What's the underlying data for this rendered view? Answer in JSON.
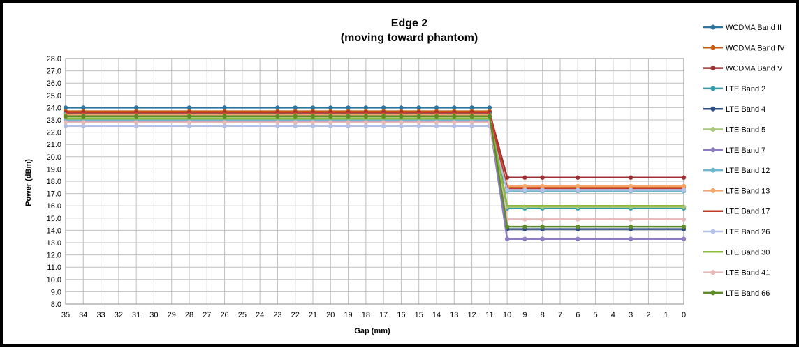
{
  "chart_data": {
    "type": "line",
    "title": "Edge 2",
    "subtitle": "(moving toward phantom)",
    "xlabel": "Gap (mm)",
    "ylabel": "Power (dBm)",
    "x": [
      35,
      34,
      33,
      32,
      31,
      30,
      29,
      28,
      27,
      26,
      25,
      24,
      23,
      22,
      21,
      20,
      19,
      18,
      17,
      16,
      15,
      14,
      13,
      12,
      11,
      10,
      9,
      8,
      7,
      6,
      5,
      4,
      3,
      2,
      1,
      0
    ],
    "x_reversed": true,
    "measured_x": [
      35,
      34,
      31,
      28,
      26,
      23,
      22,
      21,
      20,
      19,
      18,
      17,
      16,
      15,
      14,
      13,
      12,
      11,
      10,
      9,
      8,
      6,
      3,
      0
    ],
    "yticks": [
      "8.0",
      "9.0",
      "10.0",
      "11.0",
      "12.0",
      "13.0",
      "14.0",
      "15.0",
      "16.0",
      "17.0",
      "18.0",
      "19.0",
      "20.0",
      "21.0",
      "22.0",
      "23.0",
      "24.0",
      "25.0",
      "26.0",
      "27.0",
      "28.0"
    ],
    "ylim": [
      8,
      28
    ],
    "grid": true,
    "legend_position": "right",
    "series": [
      {
        "name": "WCDMA Band II",
        "color": "#2E75A0",
        "marker": "circle",
        "far": 24.0,
        "near": 15.9
      },
      {
        "name": "WCDMA Band IV",
        "color": "#C55A11",
        "marker": "circle",
        "far": 23.7,
        "near": 17.5
      },
      {
        "name": "WCDMA Band V",
        "color": "#9E3034",
        "marker": "circle",
        "far": 23.6,
        "near": 18.3
      },
      {
        "name": "LTE Band 2",
        "color": "#2E9CA6",
        "marker": "circle",
        "far": 23.5,
        "near": 15.8
      },
      {
        "name": "LTE Band 4",
        "color": "#2F4F87",
        "marker": "circle",
        "far": 23.3,
        "near": 14.1
      },
      {
        "name": "LTE Band 5",
        "color": "#A9C77B",
        "marker": "circle",
        "far": 23.2,
        "near": 15.9
      },
      {
        "name": "LTE Band 7",
        "color": "#8E7CC3",
        "marker": "circle",
        "far": 22.9,
        "near": 13.3
      },
      {
        "name": "LTE Band 12",
        "color": "#6FB6CF",
        "marker": "circle",
        "far": 23.0,
        "near": 17.2
      },
      {
        "name": "LTE Band 13",
        "color": "#F4A46A",
        "marker": "circle",
        "far": 23.4,
        "near": 17.6
      },
      {
        "name": "LTE Band 17",
        "color": "#C0392B",
        "marker": "none",
        "far": 23.6,
        "near": 17.4
      },
      {
        "name": "LTE Band 26",
        "color": "#B4C1E4",
        "marker": "circle",
        "far": 22.5,
        "near": 17.3
      },
      {
        "name": "LTE Band 30",
        "color": "#8DB83C",
        "marker": "none",
        "far": 23.1,
        "near": 16.0
      },
      {
        "name": "LTE Band 41",
        "color": "#E6B8B7",
        "marker": "circle",
        "far": 22.8,
        "near": 14.9
      },
      {
        "name": "LTE Band 66",
        "color": "#5E8B2A",
        "marker": "circle",
        "far": 23.3,
        "near": 14.3
      }
    ]
  }
}
